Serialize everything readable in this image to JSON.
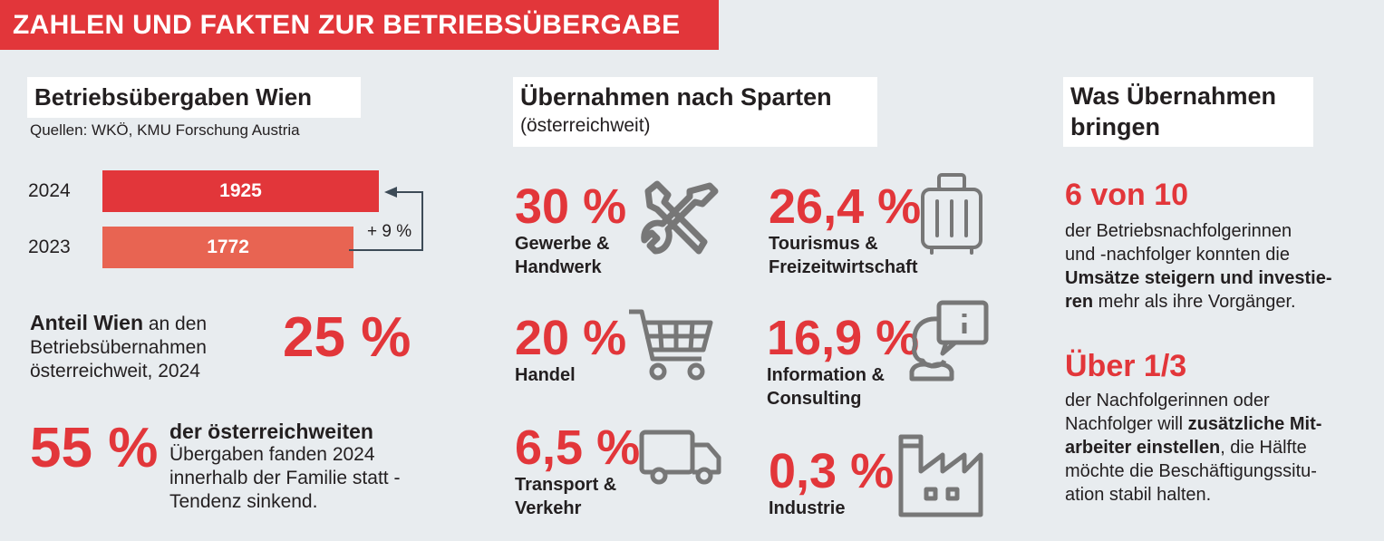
{
  "header": {
    "title": "ZAHLEN UND FAKTEN ZUR BETRIEBSÜBERGABE"
  },
  "colors": {
    "accent": "#e2363a",
    "accent_light": "#e86452",
    "icon_gray": "#777777",
    "background": "#e8ecef"
  },
  "wien": {
    "title": "Betriebsübergaben Wien",
    "source": "Quellen: WKÖ, KMU Forschung Austria",
    "bars": [
      {
        "year": "2024",
        "value": 1925,
        "label": "1925"
      },
      {
        "year": "2023",
        "value": 1772,
        "label": "1772"
      }
    ],
    "change": "+ 9 %",
    "anteil_bold": "Anteil Wien",
    "anteil_rest": " an den",
    "anteil_line2": "Betriebsübernahmen",
    "anteil_line3": "österreichweit, 2024",
    "anteil_value": "25 %",
    "familie_value": "55 %",
    "familie_bold": "der österreichweiten",
    "familie_line2": "Übergaben fanden 2024",
    "familie_line3": "innerhalb der Familie statt -",
    "familie_line4": "Tendenz sinkend."
  },
  "sparten": {
    "title": "Übernahmen nach Sparten",
    "subtitle": "(österreichweit)",
    "items": [
      {
        "value": "30 %",
        "line1": "Gewerbe &",
        "line2": "Handwerk",
        "icon": "tools-icon"
      },
      {
        "value": "26,4 %",
        "line1": "Tourismus &",
        "line2": "Freizeitwirtschaft",
        "icon": "suitcase-icon"
      },
      {
        "value": "20 %",
        "line1": "Handel",
        "line2": "",
        "icon": "shopping-cart-icon"
      },
      {
        "value": "16,9 %",
        "line1": "Information &",
        "line2": "Consulting",
        "icon": "info-person-icon"
      },
      {
        "value": "6,5 %",
        "line1": "Transport &",
        "line2": "Verkehr",
        "icon": "truck-icon"
      },
      {
        "value": "0,3 %",
        "line1": "Industrie",
        "line2": "",
        "icon": "factory-icon"
      }
    ]
  },
  "nutzen": {
    "title_line1": "Was Übernahmen",
    "title_line2": "bringen",
    "fact1_value": "6 von 10",
    "fact1_l1": "der Betriebsnachfolgerinnen",
    "fact1_l2": "und -nachfolger konnten die",
    "fact1_l3_bold": "Umsätze steigern und investie-",
    "fact1_l4_bold": "ren",
    "fact1_l4_rest": " mehr als ihre Vorgänger.",
    "fact2_value": "Über 1/3",
    "fact2_l1": "der Nachfolgerinnen oder",
    "fact2_l2_rest": "Nachfolger will ",
    "fact2_l2_bold": "zusätzliche Mit-",
    "fact2_l3_bold": "arbeiter einstellen",
    "fact2_l3_rest": ", die Hälfte",
    "fact2_l4": "möchte die Beschäftigungssitu-",
    "fact2_l5": "ation stabil halten."
  }
}
